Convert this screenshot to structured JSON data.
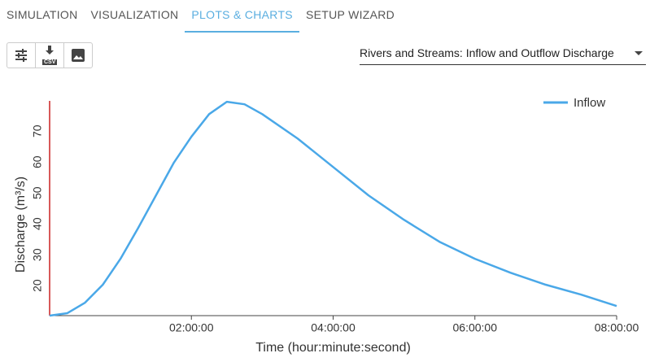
{
  "tabs": [
    "SIMULATION",
    "VISUALIZATION",
    "PLOTS & CHARTS",
    "SETUP WIZARD"
  ],
  "toolbar": {
    "csv_label": "CSV"
  },
  "dropdown": {
    "value": "Rivers and Streams: Inflow and Outflow Discharge"
  },
  "chart_data": {
    "type": "line",
    "x": [
      0,
      0.25,
      0.5,
      0.75,
      1,
      1.25,
      1.5,
      1.75,
      2,
      2.25,
      2.5,
      2.75,
      3,
      3.5,
      4,
      4.5,
      5,
      5.5,
      6,
      6.5,
      7,
      7.5,
      8
    ],
    "series": [
      {
        "name": "Inflow",
        "color": "#4aa8e8",
        "values": [
          10.3,
          11.1,
          14.5,
          20.3,
          28.7,
          38.7,
          49.2,
          59.7,
          68.2,
          75.5,
          79.5,
          78.7,
          75.5,
          67.6,
          58.4,
          49.2,
          41.3,
          34.2,
          28.7,
          24.2,
          20.3,
          17.1,
          13.4
        ]
      }
    ],
    "xlim": [
      0,
      8
    ],
    "xticks": [
      {
        "value": 2,
        "label": "02:00:00"
      },
      {
        "value": 4,
        "label": "04:00:00"
      },
      {
        "value": 6,
        "label": "06:00:00"
      },
      {
        "value": 8,
        "label": "08:00:00"
      }
    ],
    "ylim": [
      10.3,
      79.8
    ],
    "yticks": [
      20,
      30,
      40,
      50,
      60,
      70
    ],
    "xlabel": "Time (hour:minute:second)",
    "ylabel": "Discharge (m³/s)",
    "legend": "top-right",
    "y_axis_color": "#cc2222"
  }
}
